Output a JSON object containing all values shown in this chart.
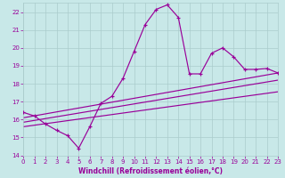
{
  "background_color": "#c8e8e8",
  "grid_color": "#aacccc",
  "line_color": "#990099",
  "xlabel": "Windchill (Refroidissement éolien,°C)",
  "xlim": [
    0,
    23
  ],
  "ylim": [
    14,
    22.5
  ],
  "yticks": [
    14,
    15,
    16,
    17,
    18,
    19,
    20,
    21,
    22
  ],
  "xticks": [
    0,
    1,
    2,
    3,
    4,
    5,
    6,
    7,
    8,
    9,
    10,
    11,
    12,
    13,
    14,
    15,
    16,
    17,
    18,
    19,
    20,
    21,
    22,
    23
  ],
  "main_x": [
    0,
    1,
    2,
    3,
    4,
    5,
    6,
    7,
    8,
    9,
    10,
    11,
    12,
    13,
    14,
    15,
    16,
    17,
    18,
    19,
    20,
    21,
    22,
    23
  ],
  "main_y": [
    16.4,
    16.2,
    15.75,
    15.4,
    15.1,
    14.4,
    15.6,
    16.9,
    17.3,
    18.3,
    19.8,
    21.3,
    22.15,
    22.4,
    21.7,
    18.55,
    18.55,
    19.7,
    20.0,
    19.5,
    18.8,
    18.8,
    18.85,
    18.6
  ],
  "trend1_x": [
    0,
    23
  ],
  "trend1_y": [
    16.1,
    18.6
  ],
  "trend2_x": [
    0,
    23
  ],
  "trend2_y": [
    15.85,
    18.2
  ],
  "trend3_x": [
    0,
    23
  ],
  "trend3_y": [
    15.6,
    17.55
  ]
}
